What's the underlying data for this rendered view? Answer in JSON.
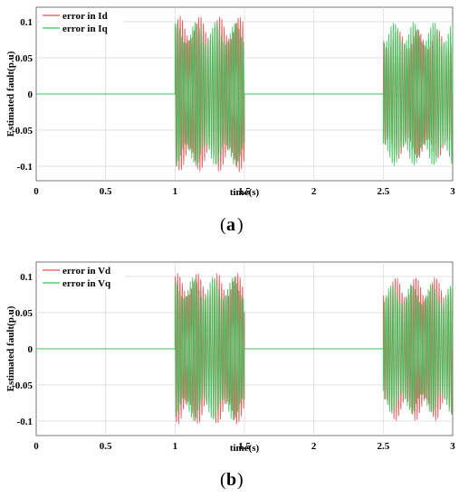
{
  "chart_data": [
    {
      "type": "line",
      "panel_label": "a",
      "xlabel": "time(s)",
      "ylabel": "Estimated fault(p.u)",
      "xlim": [
        0,
        3
      ],
      "ylim": [
        -0.12,
        0.12
      ],
      "xticks": [
        "0",
        "0.5",
        "1",
        "1.5",
        "2",
        "2.5",
        "3"
      ],
      "yticks": [
        "0.1",
        "0.05",
        "0",
        "-0.05",
        "-0.1"
      ],
      "grid": true,
      "legend_position": "top-left",
      "series": [
        {
          "name": "error in Id",
          "color": "#e05050",
          "segments": [
            {
              "t_start": 1.0,
              "t_end": 1.5,
              "amplitude": 0.108
            },
            {
              "t_start": 2.5,
              "t_end": 3.0,
              "amplitude": 0.09
            }
          ]
        },
        {
          "name": "error in Iq",
          "color": "#3cc25a",
          "segments": [
            {
              "t_start": 1.0,
              "t_end": 1.5,
              "amplitude": 0.1
            },
            {
              "t_start": 2.5,
              "t_end": 3.0,
              "amplitude": 0.1
            }
          ]
        }
      ]
    },
    {
      "type": "line",
      "panel_label": "b",
      "xlabel": "time(s)",
      "ylabel": "Estimated fault(p.u)",
      "xlim": [
        0,
        3
      ],
      "ylim": [
        -0.12,
        0.12
      ],
      "xticks": [
        "0",
        "0.5",
        "1",
        "1.5",
        "2",
        "2.5",
        "3"
      ],
      "yticks": [
        "0.1",
        "0.05",
        "0",
        "-0.05",
        "-0.1"
      ],
      "grid": true,
      "legend_position": "top-left",
      "series": [
        {
          "name": "error in Vd",
          "color": "#e05050",
          "segments": [
            {
              "t_start": 1.0,
              "t_end": 1.5,
              "amplitude": 0.105
            },
            {
              "t_start": 2.5,
              "t_end": 3.0,
              "amplitude": 0.1
            }
          ]
        },
        {
          "name": "error in Vq",
          "color": "#3cc25a",
          "segments": [
            {
              "t_start": 1.0,
              "t_end": 1.5,
              "amplitude": 0.1
            },
            {
              "t_start": 2.5,
              "t_end": 3.0,
              "amplitude": 0.09
            }
          ]
        }
      ]
    }
  ]
}
